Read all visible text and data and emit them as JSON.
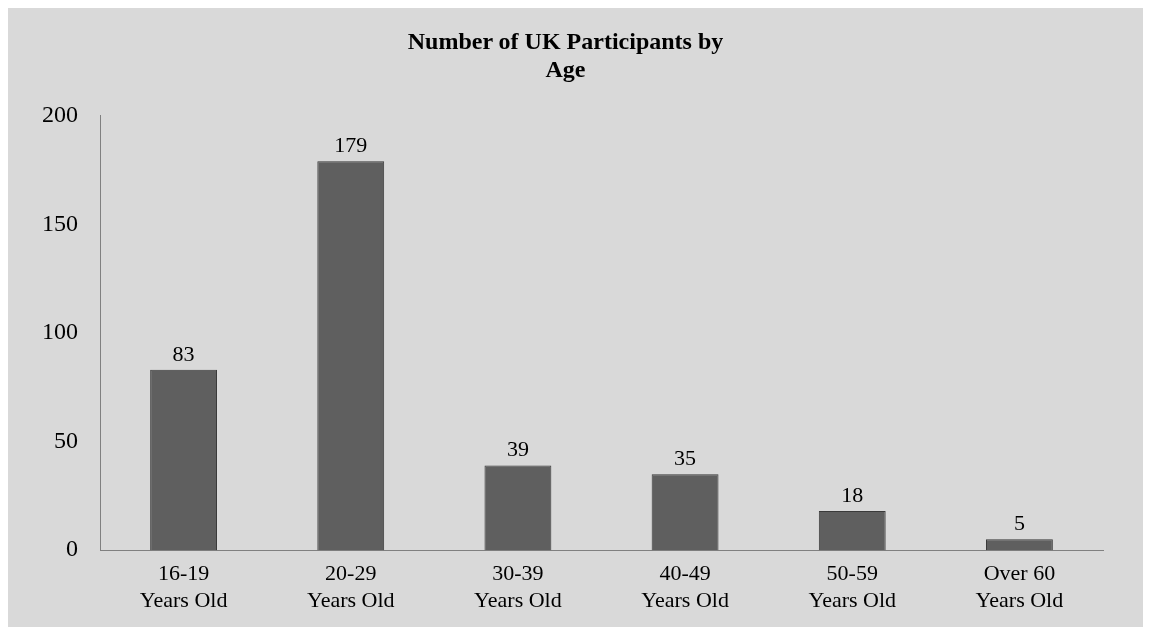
{
  "chart_data": {
    "type": "bar",
    "title": "Number of UK Participants by Age",
    "categories": [
      "16-19 Years Old",
      "20-29 Years Old",
      "30-39 Years Old",
      "40-49 Years Old",
      "50-59 Years Old",
      "Over 60 Years Old"
    ],
    "values": [
      83,
      179,
      39,
      35,
      18,
      5
    ],
    "color": "#5f5f5f",
    "ylim": [
      0,
      200
    ],
    "yticks": [
      0,
      50,
      100,
      150,
      200
    ],
    "grid": false,
    "data_labels": true
  }
}
